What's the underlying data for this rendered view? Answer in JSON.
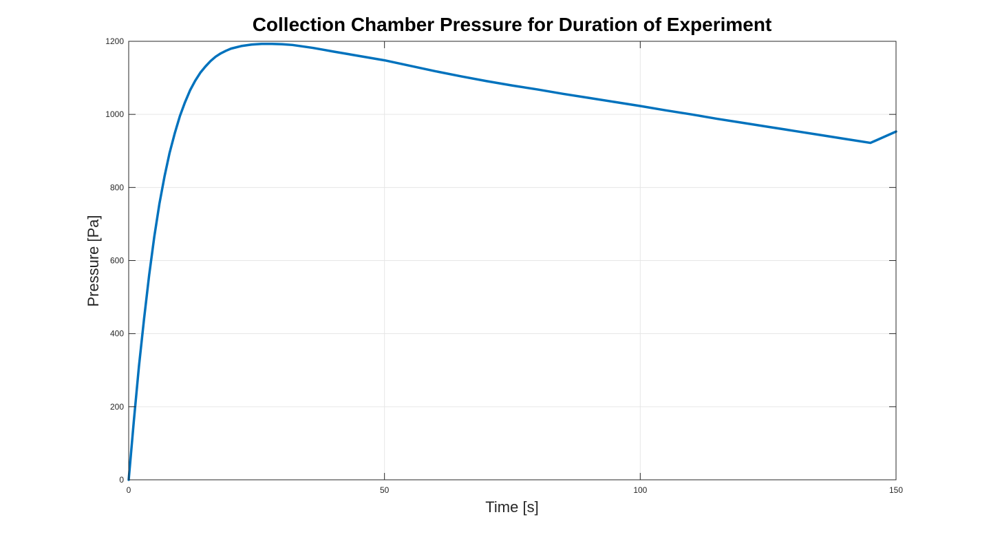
{
  "chart_data": {
    "type": "line",
    "title": "Collection Chamber Pressure for Duration of Experiment",
    "xlabel": "Time [s]",
    "ylabel": "Pressure [Pa]",
    "xlim": [
      0,
      150
    ],
    "ylim": [
      0,
      1200
    ],
    "grid": true,
    "x_ticks": [
      0,
      50,
      100,
      150
    ],
    "y_ticks": [
      0,
      200,
      400,
      600,
      800,
      1000,
      1200
    ],
    "x_tick_labels": [
      "0",
      "50",
      "100",
      "150"
    ],
    "y_tick_labels": [
      "0",
      "200",
      "400",
      "600",
      "800",
      "1000",
      "1200"
    ],
    "line_color": "#0072BD",
    "grid_color": "#e6e6e6",
    "series": [
      {
        "x": [
          0,
          0.5,
          1,
          1.5,
          2,
          3,
          4,
          5,
          6,
          7,
          8,
          9,
          10,
          11,
          12,
          13,
          14,
          15,
          16,
          17,
          18,
          19,
          20,
          22,
          24,
          26,
          28,
          30,
          32,
          34,
          36,
          38,
          40,
          45,
          50,
          55,
          60,
          65,
          70,
          75,
          80,
          85,
          90,
          95,
          100,
          105,
          110,
          115,
          120,
          125,
          130,
          135,
          140,
          145,
          150
        ],
        "values": [
          0,
          80,
          160,
          235,
          310,
          440,
          560,
          665,
          755,
          830,
          895,
          948,
          995,
          1033,
          1066,
          1092,
          1114,
          1131,
          1146,
          1158,
          1167,
          1174,
          1180,
          1187,
          1191,
          1193,
          1193,
          1192,
          1190,
          1186,
          1182,
          1177,
          1172,
          1160,
          1148,
          1133,
          1118,
          1104,
          1091,
          1079,
          1068,
          1056,
          1045,
          1034,
          1023,
          1011,
          1000,
          988,
          977,
          966,
          955,
          944,
          933,
          922,
          953
        ]
      }
    ]
  }
}
